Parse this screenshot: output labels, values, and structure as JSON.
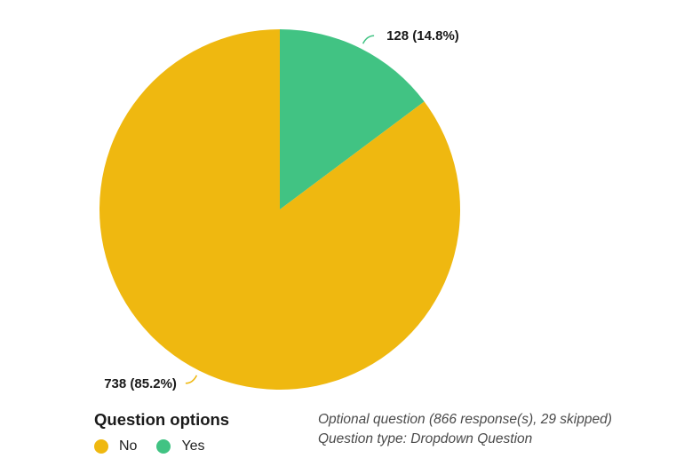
{
  "chart_data": {
    "type": "pie",
    "categories": [
      "No",
      "Yes"
    ],
    "values": [
      738,
      128
    ],
    "percentages": [
      85.2,
      14.8
    ],
    "data_labels": [
      "738 (85.2%)",
      "128 (14.8%)"
    ],
    "colors": [
      "#efb810",
      "#41c383"
    ],
    "start_category": "Yes",
    "direction": "clockwise",
    "legend_placement": "bottom-left"
  },
  "legend": {
    "title": "Question options",
    "items": [
      {
        "label": "No",
        "color": "#efb810"
      },
      {
        "label": "Yes",
        "color": "#41c383"
      }
    ]
  },
  "meta": {
    "line1": "Optional question (866 response(s), 29 skipped)",
    "line2": "Question type: Dropdown Question"
  }
}
